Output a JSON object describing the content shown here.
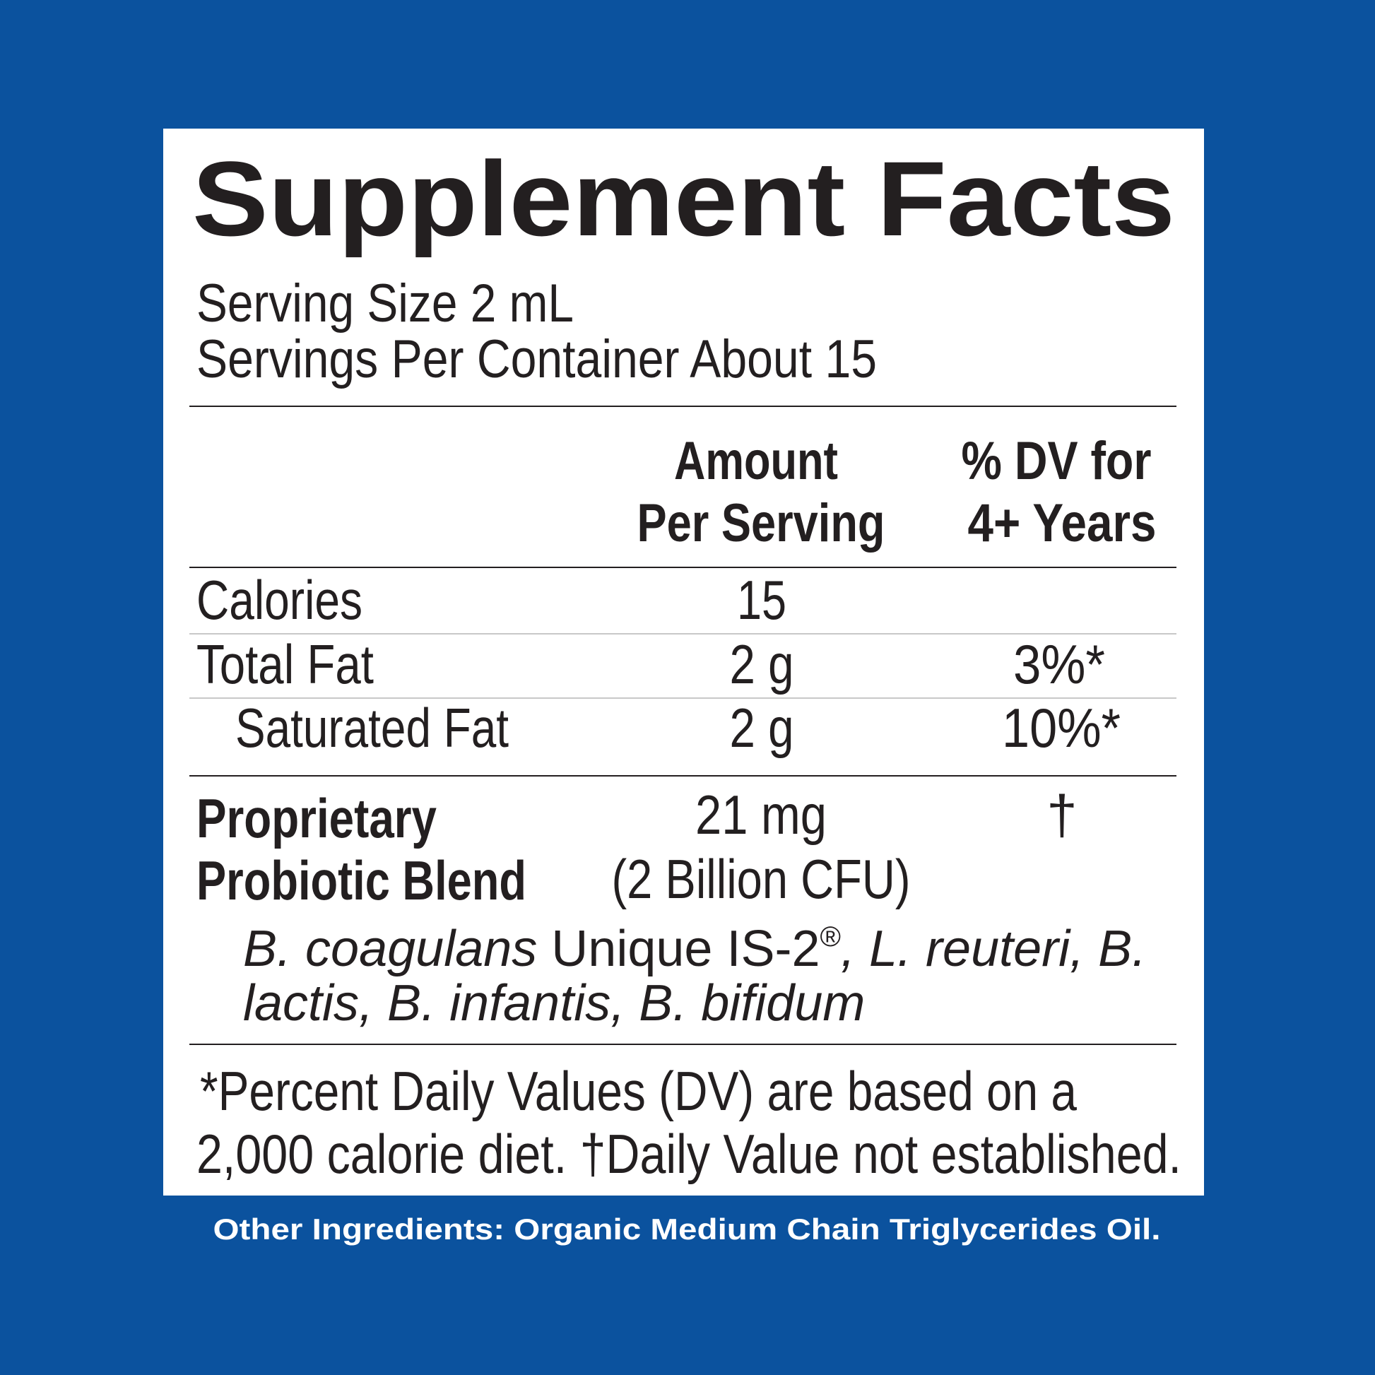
{
  "header": {
    "title": "Supplement Facts"
  },
  "serving": {
    "size": "Serving Size 2 mL",
    "per_container": "Servings Per Container About 15"
  },
  "table": {
    "headers": [
      [
        "Amount",
        "Per Serving"
      ],
      [
        "% DV for",
        "4+ Years"
      ]
    ],
    "rows": [
      {
        "name": "Calories",
        "amount": "15"
      },
      {
        "name": "Total Fat",
        "amount": "2 g",
        "dv": "3%*"
      },
      {
        "name": "Saturated Fat",
        "amount": "2 g",
        "dv": "10%*"
      }
    ],
    "blend": {
      "name": [
        "Proprietary",
        "Probiotic Blend"
      ],
      "amount": [
        "21 mg",
        "(2 Billion CFU)"
      ],
      "dv": "†",
      "ingredients": [
        {
          "text": "B. coagulans",
          "style": "italic"
        },
        {
          "text": " Unique IS-2",
          "style": "normal"
        },
        {
          "text": "®",
          "style": "sup"
        },
        {
          "text": ", L. reuteri, B. lactis, B. infantis, B. bifidum",
          "style": "italic"
        }
      ]
    }
  },
  "footnote": [
    "*Percent Daily Values (DV) are based on a",
    "2,000 calorie diet. †Daily Value not established."
  ],
  "other_ingredients": "Other Ingredients: Organic Medium Chain Triglycerides Oil."
}
